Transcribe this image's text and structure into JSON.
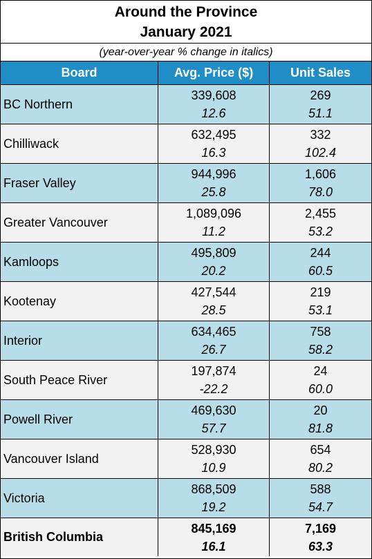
{
  "title_line1": "Around the Province",
  "title_line2": "January 2021",
  "subtitle": "(year-over-year % change in italics)",
  "headers": {
    "board": "Board",
    "price": "Avg. Price ($)",
    "sales": "Unit Sales"
  },
  "colors": {
    "header_bg": "#1f8ec7",
    "row_blue": "#b7dde8",
    "row_grey": "#f2f2f2"
  },
  "rows": [
    {
      "board": "BC Northern",
      "price": "339,608",
      "price_pct": "12.6",
      "sales": "269",
      "sales_pct": "51.1"
    },
    {
      "board": "Chilliwack",
      "price": "632,495",
      "price_pct": "16.3",
      "sales": "332",
      "sales_pct": "102.4"
    },
    {
      "board": "Fraser Valley",
      "price": "944,996",
      "price_pct": "25.8",
      "sales": "1,606",
      "sales_pct": "78.0"
    },
    {
      "board": "Greater Vancouver",
      "price": "1,089,096",
      "price_pct": "11.2",
      "sales": "2,455",
      "sales_pct": "53.2"
    },
    {
      "board": "Kamloops",
      "price": "495,809",
      "price_pct": "20.2",
      "sales": "244",
      "sales_pct": "60.5"
    },
    {
      "board": "Kootenay",
      "price": "427,544",
      "price_pct": "28.5",
      "sales": "219",
      "sales_pct": "53.1"
    },
    {
      "board": "Interior",
      "price": "634,465",
      "price_pct": "26.7",
      "sales": "758",
      "sales_pct": "58.2"
    },
    {
      "board": "South Peace River",
      "price": "197,874",
      "price_pct": "-22.2",
      "sales": "24",
      "sales_pct": "60.0"
    },
    {
      "board": "Powell River",
      "price": "469,630",
      "price_pct": "57.7",
      "sales": "20",
      "sales_pct": "81.8"
    },
    {
      "board": "Vancouver Island",
      "price": "528,930",
      "price_pct": "10.9",
      "sales": "654",
      "sales_pct": "80.2"
    },
    {
      "board": "Victoria",
      "price": "868,509",
      "price_pct": "19.2",
      "sales": "588",
      "sales_pct": "54.7"
    }
  ],
  "total": {
    "board": "British Columbia",
    "price": "845,169",
    "price_pct": "16.1",
    "sales": "7,169",
    "sales_pct": "63.3"
  }
}
